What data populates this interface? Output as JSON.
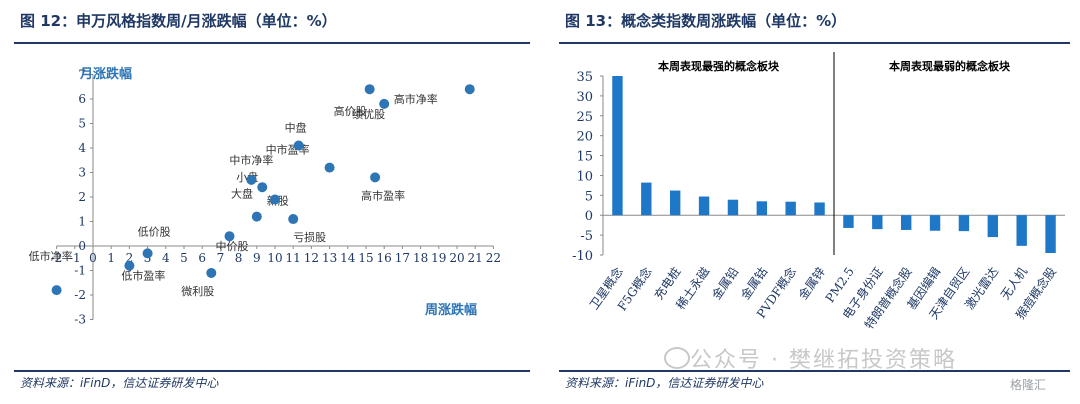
{
  "left": {
    "title": "图 12：申万风格指数周/月涨跌幅（单位：%）",
    "source": "资料来源：iFinD，信达证券研发中心"
  },
  "right": {
    "title": "图 13：概念类指数周涨跌幅（单位：%）",
    "source": "资料来源：iFinD，信达证券研发中心"
  },
  "watermark": "公众号 · 樊继拓投资策略",
  "logo": "格隆汇",
  "chart_data": [
    {
      "type": "scatter",
      "xlabel": "周涨跌幅",
      "ylabel": "月涨跌幅",
      "xlim": [
        -2,
        22
      ],
      "ylim": [
        -3,
        7
      ],
      "xticks": [
        -2,
        -1,
        0,
        1,
        2,
        3,
        4,
        5,
        6,
        7,
        8,
        9,
        10,
        11,
        12,
        13,
        14,
        15,
        16,
        17,
        18,
        19,
        20,
        21,
        22
      ],
      "yticks": [
        -3,
        -2,
        -1,
        0,
        1,
        2,
        3,
        4,
        5,
        6,
        7
      ],
      "points": [
        {
          "label": "低市净率",
          "x": -2.0,
          "y": -1.8
        },
        {
          "label": "低价股",
          "x": 3.0,
          "y": -0.3
        },
        {
          "label": "低市盈率",
          "x": 2.0,
          "y": -0.8
        },
        {
          "label": "微利股",
          "x": 6.5,
          "y": -1.1
        },
        {
          "label": "中价股",
          "x": 7.5,
          "y": 0.4
        },
        {
          "label": "新股",
          "x": 9.0,
          "y": 1.2
        },
        {
          "label": "亏损股",
          "x": 11.0,
          "y": 1.1
        },
        {
          "label": "大盘",
          "x": 10.0,
          "y": 1.9
        },
        {
          "label": "小盘",
          "x": 9.3,
          "y": 2.4
        },
        {
          "label": "中市净率",
          "x": 8.7,
          "y": 2.7
        },
        {
          "label": "中市盈率",
          "x": 13.0,
          "y": 3.2
        },
        {
          "label": "中盘",
          "x": 11.3,
          "y": 4.1
        },
        {
          "label": "高市盈率",
          "x": 15.5,
          "y": 2.8
        },
        {
          "label": "高价股",
          "x": 15.2,
          "y": 6.4
        },
        {
          "label": "绩优股",
          "x": 16.0,
          "y": 5.8
        },
        {
          "label": "高市净率",
          "x": 20.7,
          "y": 6.4
        }
      ]
    },
    {
      "type": "bar",
      "ylim": [
        -10,
        35
      ],
      "yticks": [
        -10,
        -5,
        0,
        5,
        10,
        15,
        20,
        25,
        30,
        35
      ],
      "group_labels": [
        "本周表现最强的概念板块",
        "本周表现最弱的概念板块"
      ],
      "categories": [
        "卫星概念",
        "F5G概念",
        "充电桩",
        "稀土永磁",
        "金属铅",
        "金属钴",
        "PVDF概念",
        "金属锌",
        "PM2.5",
        "电子身份证",
        "特朗普概念股",
        "基因编辑",
        "天津自贸区",
        "激光雷达",
        "无人机",
        "猴痘概念股"
      ],
      "values": [
        35.0,
        8.2,
        6.2,
        4.7,
        3.9,
        3.5,
        3.4,
        3.2,
        -3.2,
        -3.5,
        -3.7,
        -3.9,
        -4.0,
        -5.5,
        -7.7,
        -9.5
      ]
    }
  ]
}
